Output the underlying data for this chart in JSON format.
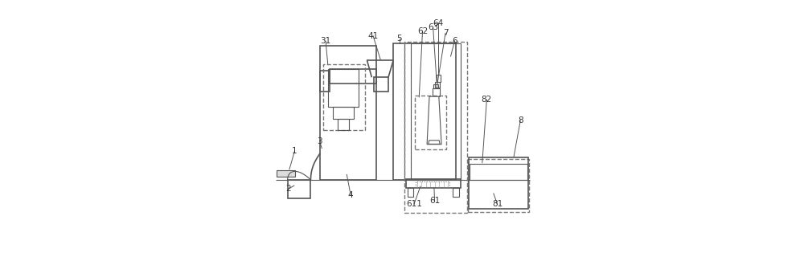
{
  "bg_color": "#ffffff",
  "line_color": "#555555",
  "dashed_color": "#777777",
  "label_color": "#333333",
  "lw": 1.2,
  "lw_thin": 0.8
}
